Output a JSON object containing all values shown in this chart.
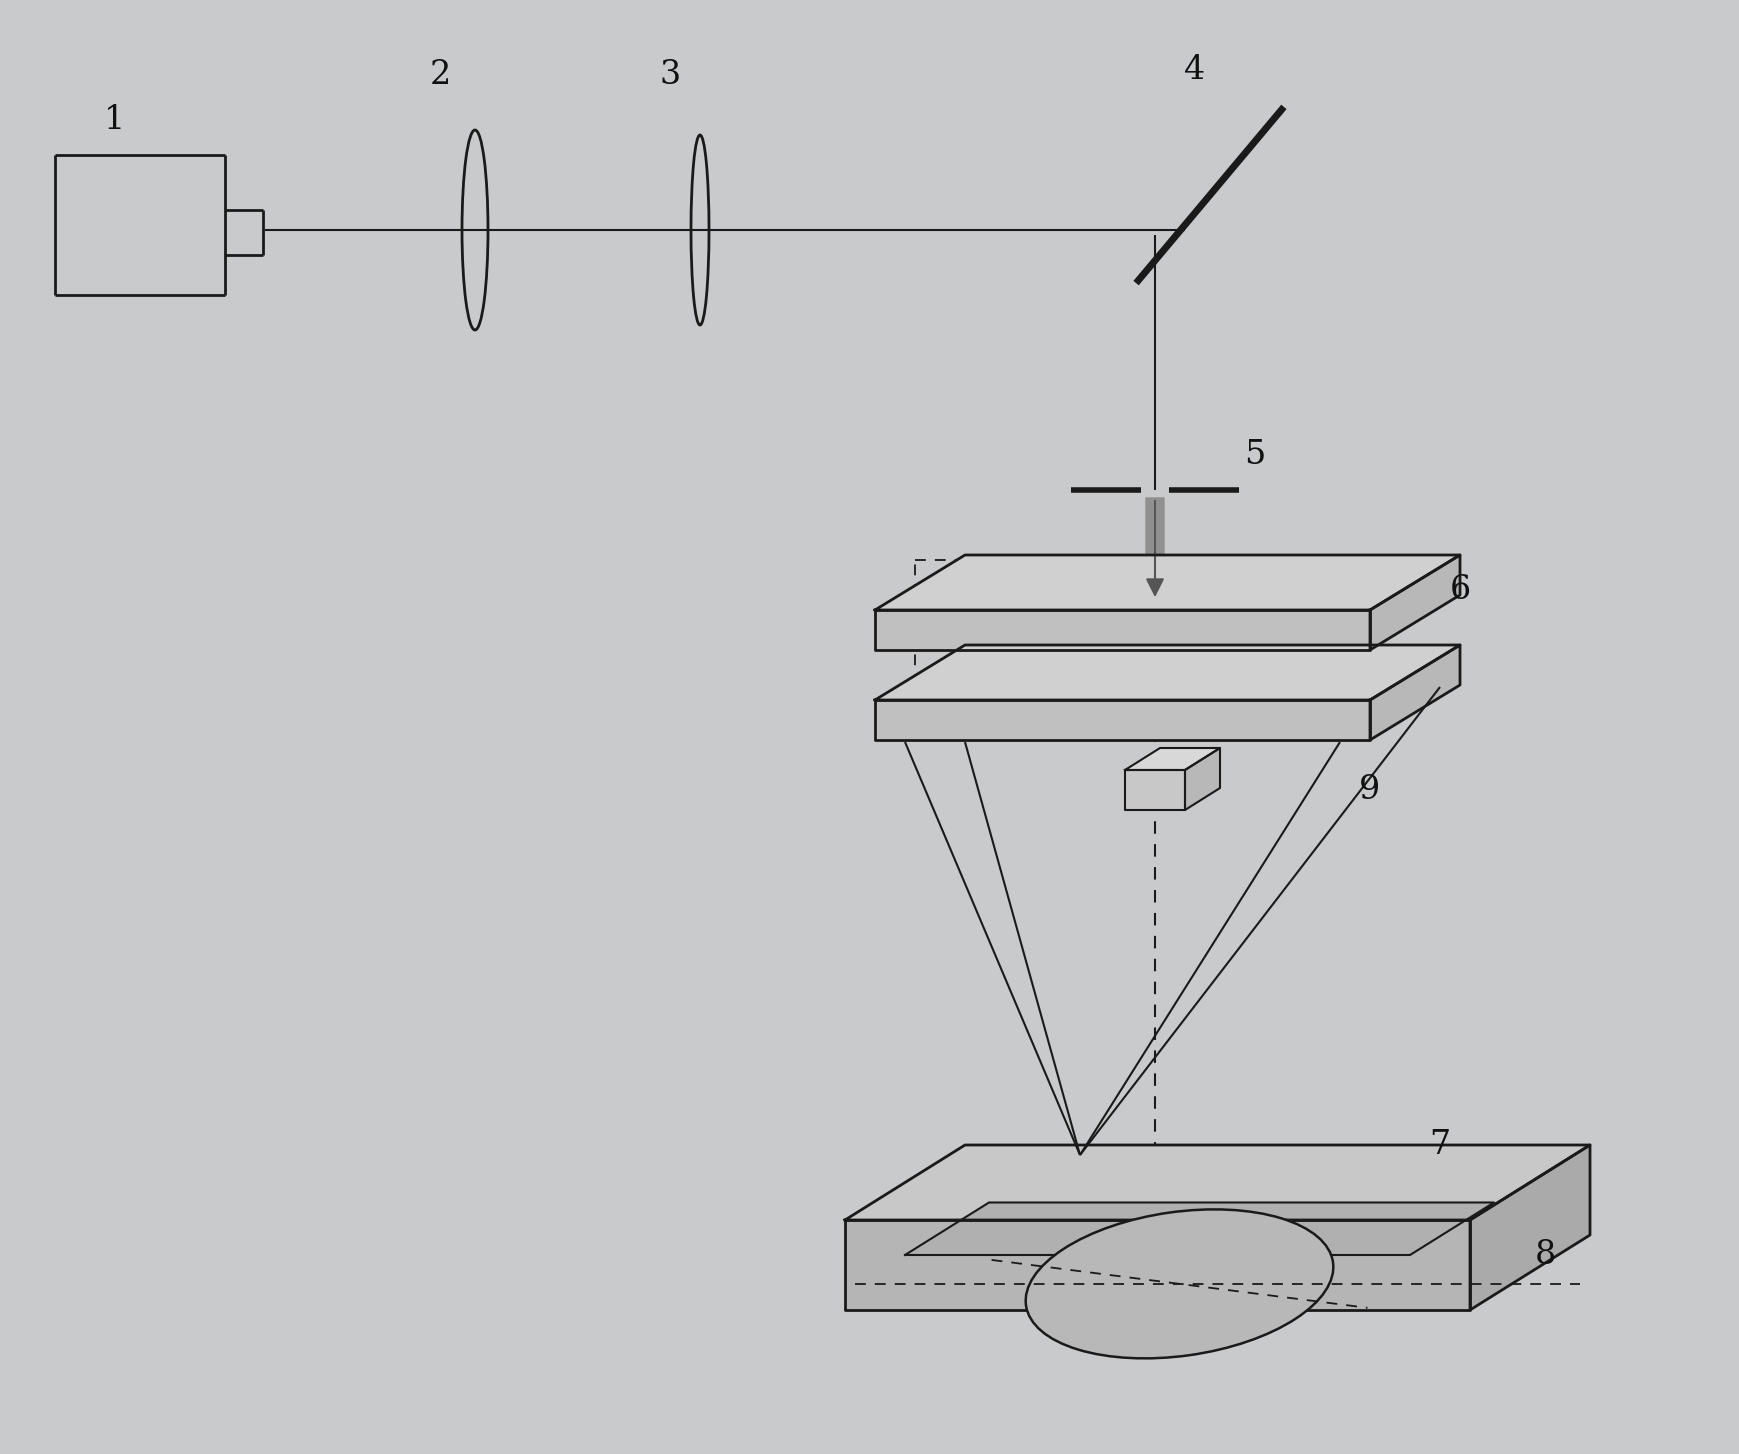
{
  "bg_color": "#c8cacb",
  "line_color": "#1a1a1a",
  "arrow_fill": "#909090",
  "arrow_edge": "#606060",
  "label_color": "#111111",
  "figsize": [
    17.4,
    14.54
  ],
  "dpi": 100,
  "fontsize": 24
}
